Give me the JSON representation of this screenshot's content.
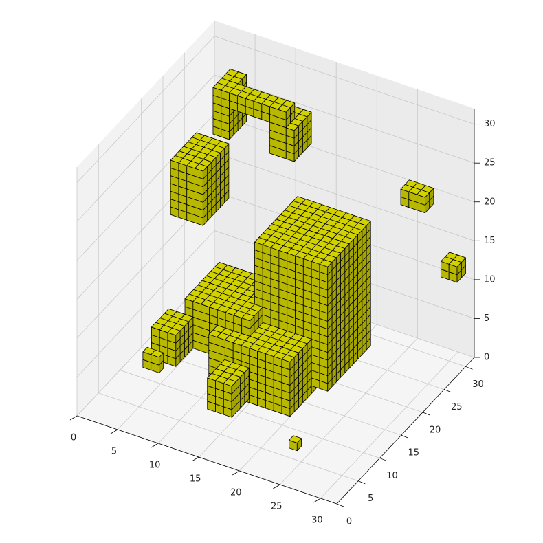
{
  "chart_data": {
    "type": "voxels",
    "xlim": [
      0,
      32
    ],
    "ylim": [
      0,
      32
    ],
    "zlim": [
      0,
      32
    ],
    "xticks": [
      0,
      5,
      10,
      15,
      20,
      25,
      30
    ],
    "yticks": [
      0,
      5,
      10,
      15,
      20,
      25,
      30
    ],
    "zticks": [
      0,
      5,
      10,
      15,
      20,
      25,
      30
    ],
    "grid": true,
    "color": "#c8c800",
    "edgecolor": "#000000",
    "blocks": [
      [
        15,
        24,
        13,
        23,
        4,
        20
      ],
      [
        12,
        22,
        8,
        14,
        3,
        10
      ],
      [
        8,
        16,
        10,
        18,
        6,
        12
      ],
      [
        2,
        6,
        18,
        24,
        16,
        23
      ],
      [
        3,
        5,
        26,
        30,
        22,
        28
      ],
      [
        5,
        12,
        26,
        28,
        26,
        28
      ],
      [
        10,
        13,
        26,
        30,
        22,
        26
      ],
      [
        24,
        27,
        30,
        32,
        18,
        20
      ],
      [
        30,
        32,
        28,
        30,
        12,
        14
      ],
      [
        6,
        8,
        4,
        5,
        6,
        8
      ],
      [
        15,
        18,
        2,
        6,
        5,
        9
      ],
      [
        6,
        9,
        6,
        10,
        6,
        10
      ],
      [
        24,
        25,
        4,
        5,
        2,
        3
      ]
    ]
  }
}
